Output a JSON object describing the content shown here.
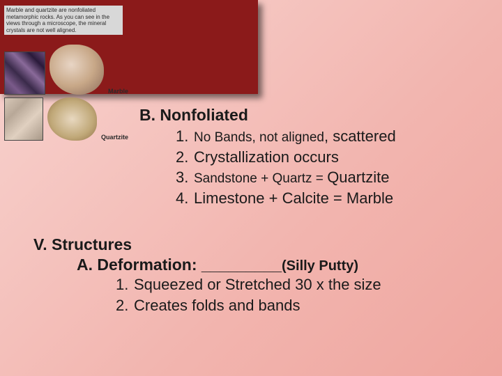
{
  "caption": "Marble and quartzite are nonfoliated metamorphic rocks. As you can see in the views through a microscope, the mineral crystals are not well aligned.",
  "rocks": {
    "marble_label": "Marble",
    "quartzite_label": "Quartzite"
  },
  "section_b": {
    "heading": "B. Nonfoliated",
    "items": [
      {
        "num": "1.",
        "text_small": "No Bands, not aligned",
        "text_after": ", scattered"
      },
      {
        "num": "2.",
        "text": "Crystallization occurs"
      },
      {
        "num": "3.",
        "text_small": "Sandstone + Quartz = ",
        "text_after": "Quartzite"
      },
      {
        "num": "4.",
        "text": "Limestone + Calcite = Marble"
      }
    ]
  },
  "section_v": {
    "heading": "V. Structures",
    "sub_a_label": "A. Deformation:",
    "sub_a_blank": "_________",
    "sub_a_paren": "(Silly Putty)",
    "items": [
      {
        "num": "1.",
        "text": "Squeezed or Stretched 30 x the size"
      },
      {
        "num": "2.",
        "text": "Creates folds and bands"
      }
    ]
  },
  "colors": {
    "header_bar": "#8b1a1a",
    "bg_start": "#f8d4d0",
    "bg_end": "#efa69f",
    "text": "#1a1a1a"
  }
}
